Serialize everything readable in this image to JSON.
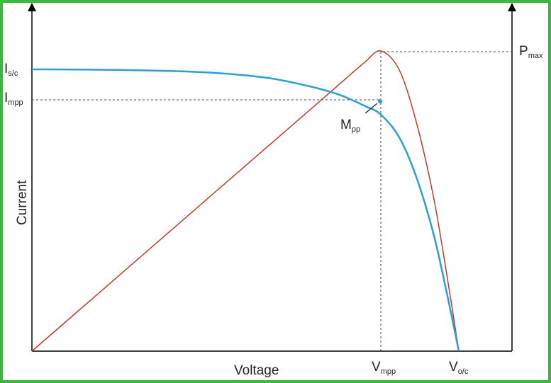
{
  "diagram": {
    "x_axis_label": "Voltage",
    "y_axis_label": "Current",
    "isc": {
      "main": "I",
      "sub": "s/c"
    },
    "impp": {
      "main": "I",
      "sub": "mpp"
    },
    "pmax": {
      "main": "P",
      "sub": "max"
    },
    "mpp": {
      "main": "M",
      "sub": "pp"
    },
    "vmpp": {
      "main": "V",
      "sub": "mpp"
    },
    "voc": {
      "main": "V",
      "sub": "o/c"
    },
    "colors": {
      "frame": "#3cb83c",
      "iv_curve": "#2a9fd6",
      "power_curve": "#c0392b",
      "axes": "#000000"
    }
  },
  "chart_data": {
    "type": "line",
    "title": "",
    "xlabel": "Voltage",
    "ylabel": "Current",
    "series": [
      {
        "curve": "current",
        "x": [
          0,
          0.2,
          0.4,
          0.55,
          0.65,
          0.72,
          0.78,
          0.817,
          0.86,
          0.9,
          0.94,
          0.97,
          1.0
        ],
        "y": [
          1.0,
          0.998,
          0.99,
          0.97,
          0.94,
          0.91,
          0.87,
          0.84,
          0.76,
          0.62,
          0.42,
          0.22,
          0.0
        ]
      },
      {
        "curve": "power",
        "x": [
          0,
          0.2,
          0.4,
          0.55,
          0.65,
          0.72,
          0.78,
          0.817,
          0.86,
          0.9,
          0.94,
          0.97,
          1.0
        ],
        "y": [
          0,
          0.2,
          0.4,
          0.55,
          0.65,
          0.72,
          0.78,
          0.81,
          0.76,
          0.62,
          0.42,
          0.22,
          0.0
        ]
      }
    ]
  }
}
